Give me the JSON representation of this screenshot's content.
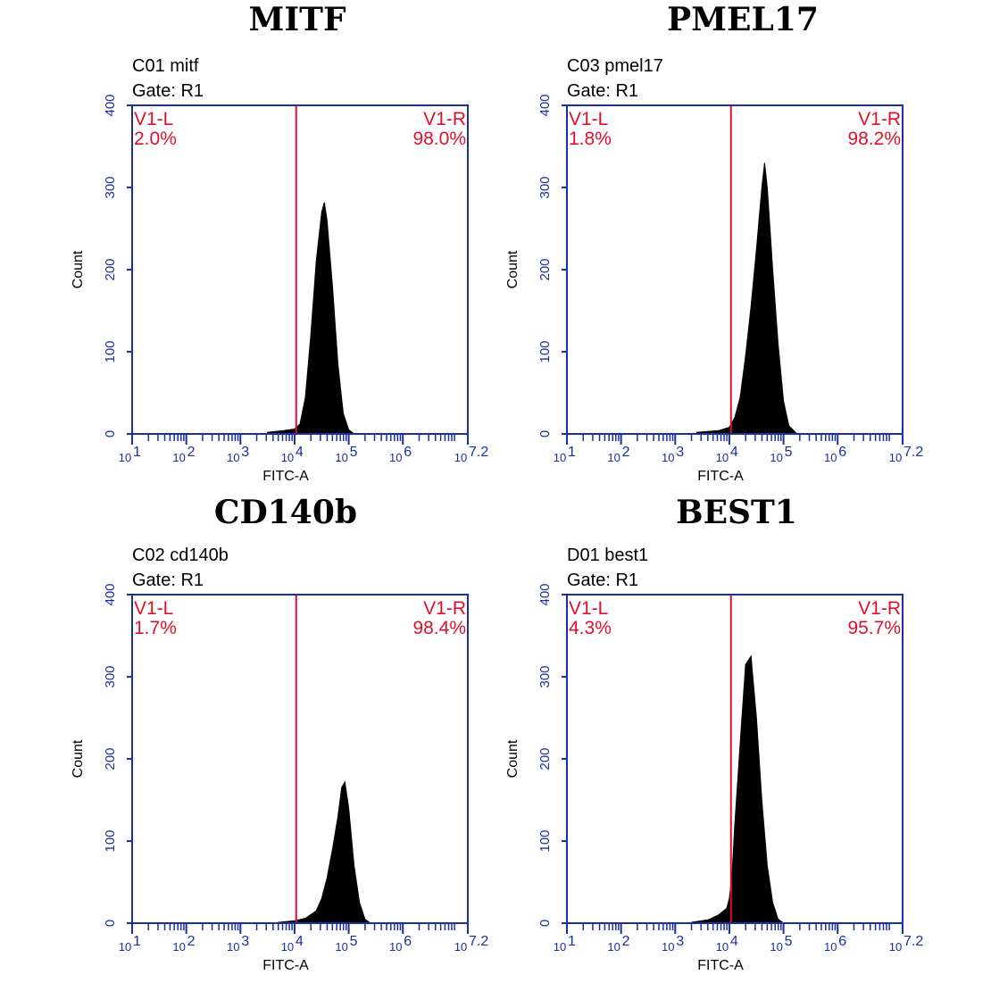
{
  "colors": {
    "axis": "#1a2fa0",
    "gate": "#e0102c",
    "histogram": "#000000",
    "text": "#000000"
  },
  "chart_data": [
    {
      "type": "histogram",
      "title": "MITF",
      "sample_label": "C01 mitf",
      "gate_label": "Gate: R1",
      "xlabel": "FITC-A",
      "ylabel": "Count",
      "xscale": "log10",
      "xlim": [
        1,
        7.2
      ],
      "ylim": [
        0,
        400
      ],
      "yticks": [
        "0",
        "100",
        "200",
        "300",
        "400"
      ],
      "xtick_bases": [
        "10",
        "10",
        "10",
        "10",
        "10",
        "10",
        "10"
      ],
      "xtick_exps": [
        "1",
        "2",
        "3",
        "4",
        "5",
        "6",
        "7.2"
      ],
      "marker_log10": 4.03,
      "regions": {
        "left_name": "V1-L",
        "left_pct": "2.0%",
        "right_name": "V1-R",
        "right_pct": "98.0%"
      },
      "histogram": {
        "x_log10": [
          3.5,
          3.8,
          4.0,
          4.1,
          4.2,
          4.3,
          4.4,
          4.5,
          4.55,
          4.6,
          4.7,
          4.8,
          4.9,
          5.0,
          5.1
        ],
        "counts": [
          2,
          4,
          6,
          12,
          45,
          120,
          210,
          270,
          282,
          260,
          180,
          85,
          25,
          5,
          0
        ]
      }
    },
    {
      "type": "histogram",
      "title": "PMEL17",
      "sample_label": "C03 pmel17",
      "gate_label": "Gate: R1",
      "xlabel": "FITC-A",
      "ylabel": "Count",
      "xscale": "log10",
      "xlim": [
        1,
        7.2
      ],
      "ylim": [
        0,
        400
      ],
      "yticks": [
        "0",
        "100",
        "200",
        "300",
        "400"
      ],
      "xtick_bases": [
        "10",
        "10",
        "10",
        "10",
        "10",
        "10",
        "10"
      ],
      "xtick_exps": [
        "1",
        "2",
        "3",
        "4",
        "5",
        "6",
        "7.2"
      ],
      "marker_log10": 4.03,
      "regions": {
        "left_name": "V1-L",
        "left_pct": "1.8%",
        "right_name": "V1-R",
        "right_pct": "98.2%"
      },
      "histogram": {
        "x_log10": [
          3.4,
          3.8,
          4.0,
          4.1,
          4.2,
          4.3,
          4.4,
          4.5,
          4.6,
          4.65,
          4.7,
          4.8,
          4.9,
          5.0,
          5.1,
          5.25
        ],
        "counts": [
          2,
          4,
          8,
          20,
          45,
          95,
          155,
          225,
          300,
          330,
          300,
          200,
          110,
          40,
          10,
          0
        ]
      }
    },
    {
      "type": "histogram",
      "title": "CD140b",
      "sample_label": "C02 cd140b",
      "gate_label": "Gate: R1",
      "xlabel": "FITC-A",
      "ylabel": "Count",
      "xscale": "log10",
      "xlim": [
        1,
        7.2
      ],
      "ylim": [
        0,
        400
      ],
      "yticks": [
        "0",
        "100",
        "200",
        "300",
        "400"
      ],
      "xtick_bases": [
        "10",
        "10",
        "10",
        "10",
        "10",
        "10",
        "10"
      ],
      "xtick_exps": [
        "1",
        "2",
        "3",
        "4",
        "5",
        "6",
        "7.2"
      ],
      "marker_log10": 4.03,
      "regions": {
        "left_name": "V1-L",
        "left_pct": "1.7%",
        "right_name": "V1-R",
        "right_pct": "98.4%"
      },
      "histogram": {
        "x_log10": [
          3.7,
          4.0,
          4.2,
          4.4,
          4.5,
          4.6,
          4.7,
          4.8,
          4.87,
          4.93,
          5.0,
          5.1,
          5.2,
          5.3,
          5.4
        ],
        "counts": [
          1,
          3,
          6,
          15,
          30,
          55,
          90,
          130,
          165,
          172,
          140,
          70,
          25,
          5,
          0
        ]
      }
    },
    {
      "type": "histogram",
      "title": "BEST1",
      "sample_label": "D01 best1",
      "gate_label": "Gate: R1",
      "xlabel": "FITC-A",
      "ylabel": "Count",
      "xscale": "log10",
      "xlim": [
        1,
        7.2
      ],
      "ylim": [
        0,
        400
      ],
      "yticks": [
        "0",
        "100",
        "200",
        "300",
        "400"
      ],
      "xtick_bases": [
        "10",
        "10",
        "10",
        "10",
        "10",
        "10",
        "10"
      ],
      "xtick_exps": [
        "1",
        "2",
        "3",
        "4",
        "5",
        "6",
        "7.2"
      ],
      "marker_log10": 4.03,
      "regions": {
        "left_name": "V1-L",
        "left_pct": "4.3%",
        "right_name": "V1-R",
        "right_pct": "95.7%"
      },
      "histogram": {
        "x_log10": [
          3.3,
          3.6,
          3.8,
          3.95,
          4.0,
          4.05,
          4.1,
          4.2,
          4.3,
          4.4,
          4.5,
          4.6,
          4.7,
          4.8,
          4.9,
          5.0
        ],
        "counts": [
          1,
          4,
          10,
          18,
          30,
          60,
          120,
          220,
          315,
          325,
          250,
          150,
          70,
          25,
          5,
          0
        ]
      }
    }
  ]
}
